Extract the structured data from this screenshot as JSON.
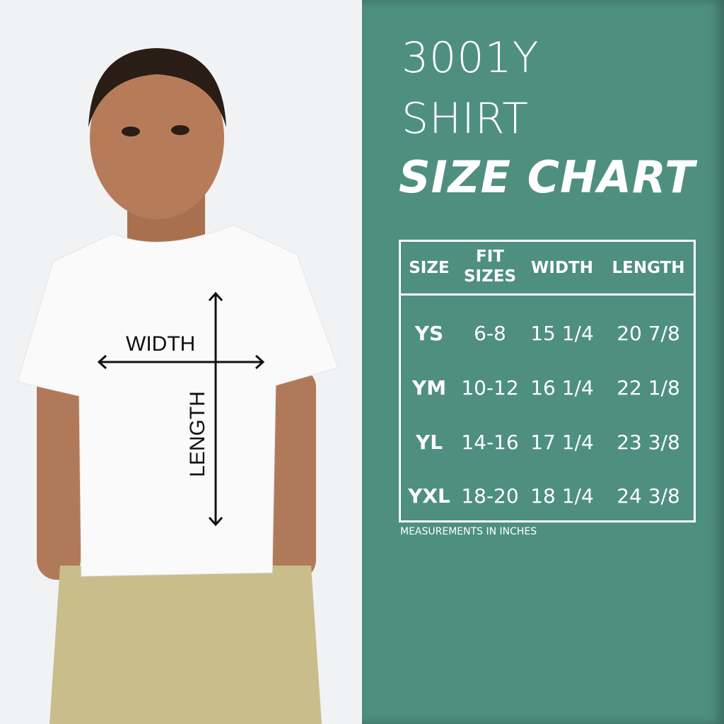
{
  "header": {
    "line1": "3001Y",
    "line2": "SHIRT",
    "line3": "SIZE CHART"
  },
  "table": {
    "columns": [
      "SIZE",
      "FIT SIZES",
      "WIDTH",
      "LENGTH"
    ],
    "column_lines": {
      "fit1": "FIT",
      "fit2": "SIZES"
    },
    "rows": [
      {
        "size": "YS",
        "fit": "6-8",
        "width": "15 1/4",
        "length": "20 7/8"
      },
      {
        "size": "YM",
        "fit": "10-12",
        "width": "16 1/4",
        "length": "22 1/8"
      },
      {
        "size": "YL",
        "fit": "14-16",
        "width": "17 1/4",
        "length": "23 3/8"
      },
      {
        "size": "YXL",
        "fit": "18-20",
        "width": "18 1/4",
        "length": "24 3/8"
      }
    ]
  },
  "note": "MEASUREMENTS IN INCHES",
  "photo": {
    "width_label": "WIDTH",
    "length_label": "LENGTH"
  },
  "colors": {
    "panel": "#4e8f80",
    "text": "#ffffff",
    "photo_bg": "#f1f2f4"
  }
}
